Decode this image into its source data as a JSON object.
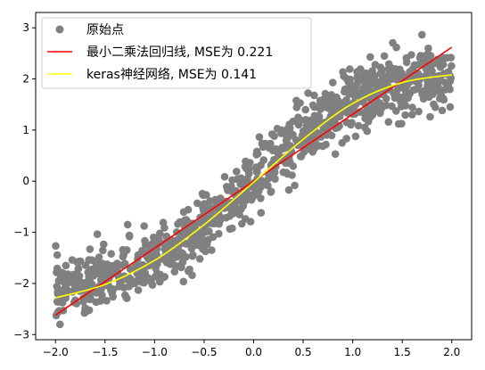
{
  "chart_data": {
    "type": "scatter",
    "title": "",
    "xlabel": "",
    "ylabel": "",
    "xlim": [
      -2.2,
      2.2
    ],
    "ylim": [
      -3.1,
      3.3
    ],
    "xticks": [
      -2.0,
      -1.5,
      -1.0,
      -0.5,
      0.0,
      0.5,
      1.0,
      1.5,
      2.0
    ],
    "xtick_labels": [
      "−2.0",
      "−1.5",
      "−1.0",
      "−0.5",
      "0.0",
      "0.5",
      "1.0",
      "1.5",
      "2.0"
    ],
    "yticks": [
      -3,
      -2,
      -1,
      0,
      1,
      2,
      3
    ],
    "ytick_labels": [
      "−3",
      "−2",
      "−1",
      "0",
      "1",
      "2",
      "3"
    ],
    "legend_position": "top-left",
    "series": [
      {
        "name": "原始点",
        "kind": "scatter",
        "color": "#808080",
        "n_points": 1000,
        "x_range": [
          -2.0,
          2.0
        ],
        "trend": "y ≈ 2.2·tanh(0.9·x) with noise σ≈0.3"
      },
      {
        "name": "最小二乘法回归线, MSE为 0.221",
        "kind": "line",
        "color": "#ff0000",
        "x": [
          -2.0,
          2.0
        ],
        "y": [
          -2.62,
          2.62
        ]
      },
      {
        "name": "keras神经网络, MSE为 0.141",
        "kind": "line",
        "color": "#ffff00",
        "x": [
          -2.0,
          -1.5,
          -1.0,
          -0.5,
          0.0,
          0.5,
          1.0,
          1.5,
          2.0
        ],
        "y": [
          -2.28,
          -2.02,
          -1.55,
          -0.85,
          -0.02,
          0.82,
          1.52,
          1.93,
          2.08
        ]
      }
    ]
  }
}
